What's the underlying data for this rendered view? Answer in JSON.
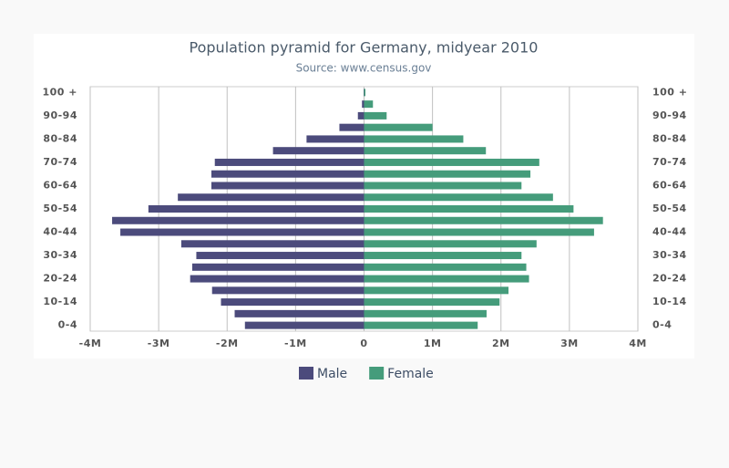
{
  "chart_data": {
    "type": "pyramid",
    "title": "Population pyramid for Germany, midyear 2010",
    "subtitle": "Source: www.census.gov",
    "categories": [
      "0-4",
      null,
      "10-14",
      null,
      "20-24",
      null,
      "30-34",
      null,
      "40-44",
      null,
      "50-54",
      null,
      "60-64",
      null,
      "70-74",
      null,
      "80-84",
      null,
      "90-94",
      null,
      "100 +"
    ],
    "series": [
      {
        "name": "Male",
        "color": "#4c4b7c",
        "values": [
          -1740000,
          -1890000,
          -2090000,
          -2220000,
          -2540000,
          -2510000,
          -2450000,
          -2670000,
          -3560000,
          -3680000,
          -3150000,
          -2720000,
          -2230000,
          -2230000,
          -2180000,
          -1330000,
          -840000,
          -360000,
          -90000,
          -30000,
          -5000
        ]
      },
      {
        "name": "Female",
        "color": "#459c7b",
        "values": [
          1660000,
          1790000,
          1980000,
          2110000,
          2410000,
          2370000,
          2300000,
          2520000,
          3360000,
          3490000,
          3060000,
          2760000,
          2300000,
          2430000,
          2560000,
          1780000,
          1450000,
          1000000,
          330000,
          130000,
          20000
        ]
      }
    ],
    "xlim": [
      -4000000,
      4000000
    ],
    "xticks": [
      {
        "value": -4000000,
        "label": "-4M"
      },
      {
        "value": -3000000,
        "label": "-3M"
      },
      {
        "value": -2000000,
        "label": "-2M"
      },
      {
        "value": -1000000,
        "label": "-1M"
      },
      0,
      {
        "value": 1000000,
        "label": "1M"
      },
      {
        "value": 2000000,
        "label": "2M"
      },
      {
        "value": 3000000,
        "label": "3M"
      },
      {
        "value": 4000000,
        "label": "4M"
      }
    ],
    "grid": true
  }
}
